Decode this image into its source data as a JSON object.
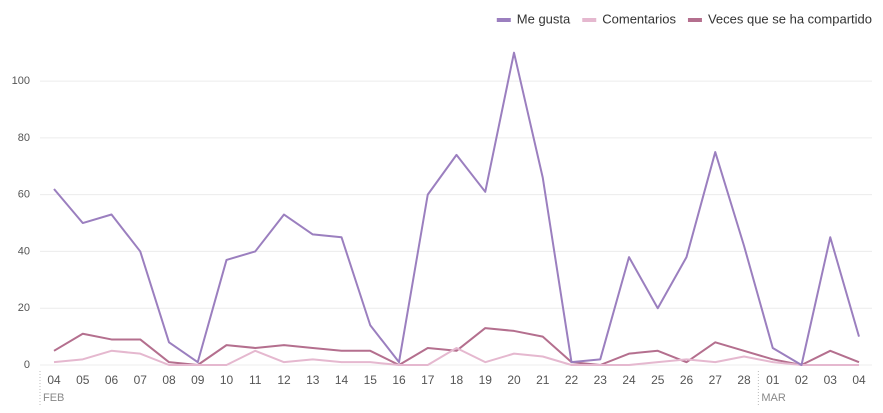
{
  "chart_data": {
    "type": "line",
    "categories": [
      "04",
      "05",
      "06",
      "07",
      "08",
      "09",
      "10",
      "11",
      "12",
      "13",
      "14",
      "15",
      "16",
      "17",
      "18",
      "19",
      "20",
      "21",
      "22",
      "23",
      "24",
      "25",
      "26",
      "27",
      "28",
      "01",
      "02",
      "03",
      "04"
    ],
    "months": [
      "FEB",
      "MAR"
    ],
    "series": [
      {
        "name": "Me gusta",
        "color": "#9b7fbf",
        "values": [
          62,
          50,
          53,
          40,
          8,
          1,
          37,
          40,
          53,
          46,
          45,
          14,
          1,
          60,
          74,
          61,
          110,
          66,
          1,
          2,
          38,
          20,
          38,
          75,
          42,
          6,
          0,
          45,
          10
        ]
      },
      {
        "name": "Comentarios",
        "color": "#e5b8cf",
        "values": [
          1,
          2,
          5,
          4,
          0,
          0,
          0,
          5,
          1,
          2,
          1,
          1,
          0,
          0,
          6,
          1,
          4,
          3,
          0,
          0,
          0,
          1,
          2,
          1,
          3,
          1,
          0,
          0,
          0
        ]
      },
      {
        "name": "Veces que se ha compartido",
        "color": "#b46f8e",
        "values": [
          5,
          11,
          9,
          9,
          1,
          0,
          7,
          6,
          7,
          6,
          5,
          5,
          0,
          6,
          5,
          13,
          12,
          10,
          1,
          0,
          4,
          5,
          1,
          8,
          5,
          2,
          0,
          5,
          1
        ]
      }
    ],
    "ylim": [
      0,
      112
    ],
    "yticks": [
      0,
      20,
      40,
      60,
      80,
      100
    ],
    "grid": true,
    "legend": "top-right"
  }
}
